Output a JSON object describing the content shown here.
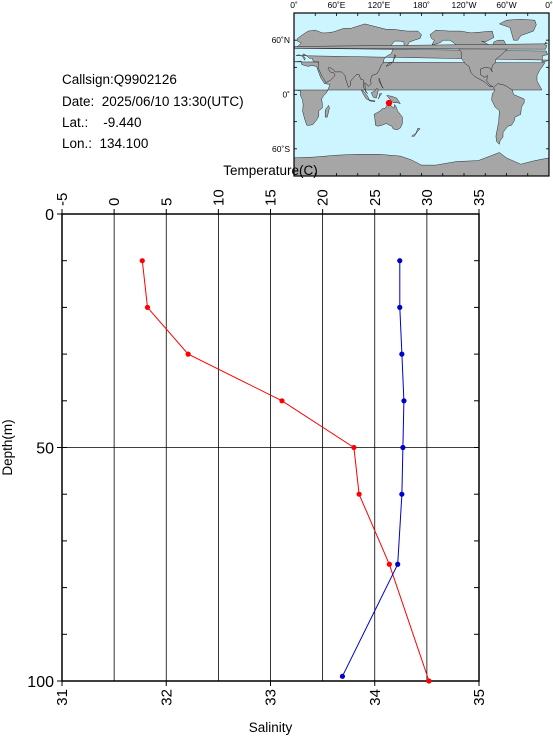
{
  "station": {
    "callsign": "Callsign:Q9902126",
    "date": "Date:  2025/06/10 13:30(UTC)",
    "lat": "Lat.:    -9.440",
    "lon": "Lon.:  134.100"
  },
  "map": {
    "lon_labels": [
      "0˚",
      "60˚E",
      "120˚E",
      "180˚",
      "120˚W",
      "60˚W",
      "0˚"
    ],
    "lat_labels": [
      "60˚N",
      "0˚",
      "60˚S"
    ],
    "marker_lon": 134.1,
    "marker_lat": -9.44,
    "marker_color": "#ff0000",
    "ocean_color": "#ccf5ff",
    "land_color": "#a6a6a6"
  },
  "chart_data": {
    "type": "line",
    "temperature_axis": {
      "label": "Temperature(C)",
      "range": [
        -5,
        35
      ],
      "ticks": [
        -5,
        0,
        5,
        10,
        15,
        20,
        25,
        30,
        35
      ]
    },
    "salinity_axis": {
      "label": "Salinity",
      "range": [
        31,
        35
      ],
      "ticks": [
        31,
        32,
        33,
        34,
        35
      ]
    },
    "depth_axis": {
      "label": "Depth(m)",
      "range": [
        0,
        100
      ],
      "ticks": [
        0,
        50,
        100
      ],
      "inverted": true
    },
    "grid": true,
    "series": [
      {
        "variable": "temperature",
        "color": "#ff0000",
        "depth": [
          10,
          20,
          30,
          40,
          50,
          60,
          75,
          100
        ],
        "values": [
          2.7,
          3.2,
          7.1,
          16.1,
          23.0,
          23.5,
          26.4,
          30.2
        ]
      },
      {
        "variable": "salinity",
        "color": "#0000cc",
        "depth": [
          10,
          20,
          30,
          40,
          50,
          60,
          75,
          99
        ],
        "values": [
          34.24,
          34.24,
          34.26,
          34.28,
          34.27,
          34.26,
          34.22,
          33.69
        ]
      }
    ]
  }
}
